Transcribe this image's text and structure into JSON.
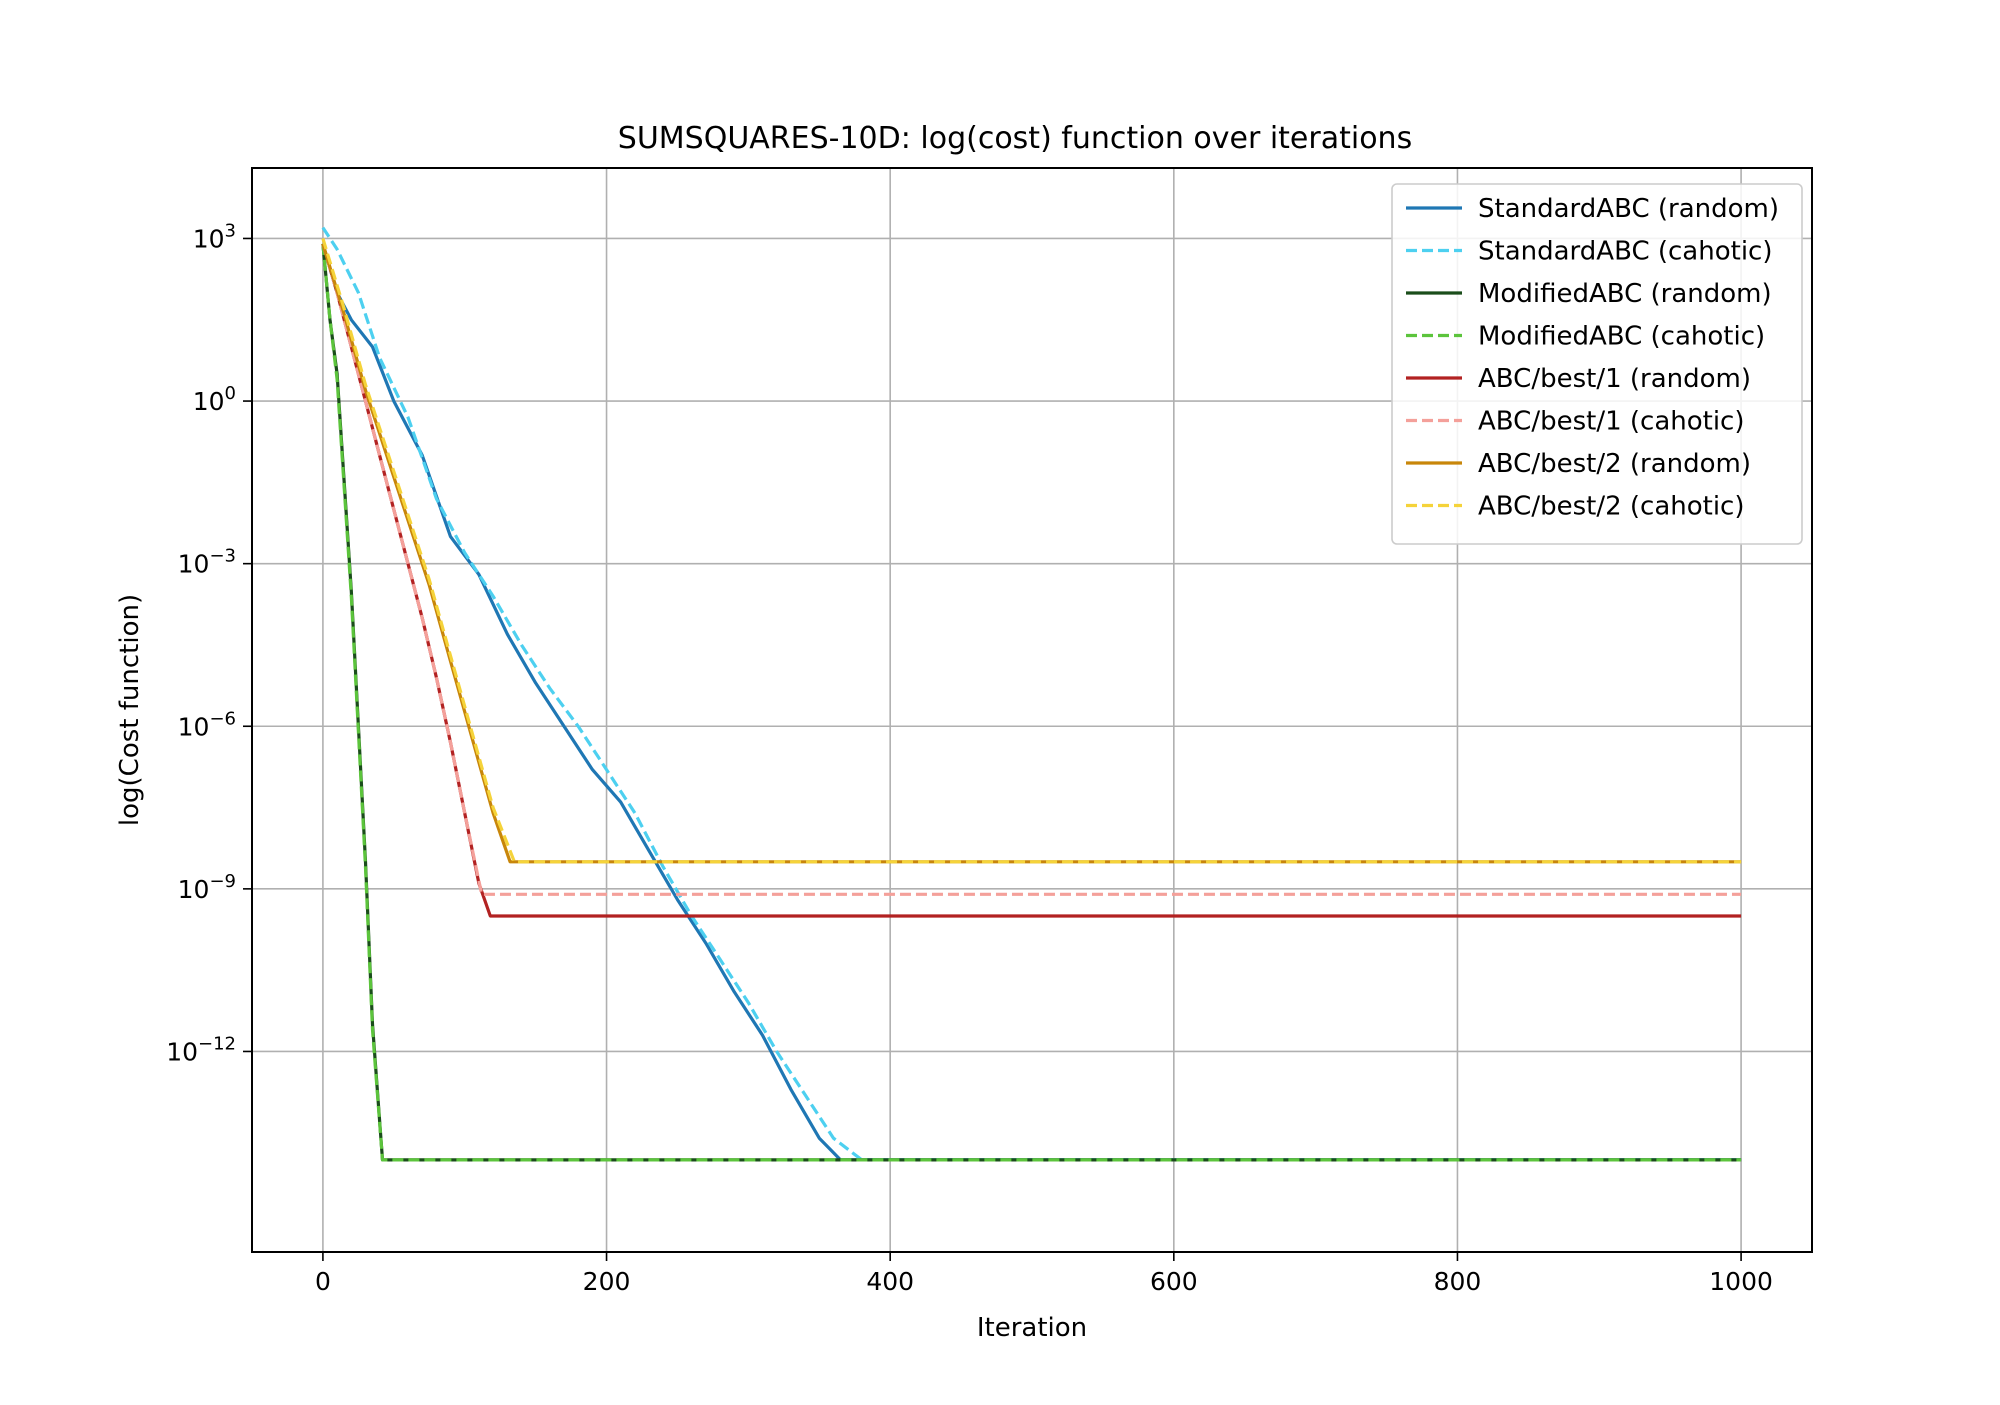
{
  "chart_data": {
    "type": "line",
    "title": "SUMSQUARES-10D: log(cost) function over iterations",
    "xlabel": "Iteration",
    "ylabel": "log(Cost function)",
    "xlim": [
      -50,
      1050
    ],
    "x_ticks": [
      0,
      200,
      400,
      600,
      800,
      1000
    ],
    "x_tick_labels": [
      "0",
      "200",
      "400",
      "600",
      "800",
      "1000"
    ],
    "y_scale": "log",
    "ylim_log10": [
      -15.7,
      4.3
    ],
    "y_ticks_log10": [
      3,
      0,
      -3,
      -6,
      -9,
      -12
    ],
    "y_tick_labels": [
      {
        "base": "10",
        "exp": "3"
      },
      {
        "base": "10",
        "exp": "0"
      },
      {
        "base": "10",
        "exp": "−3"
      },
      {
        "base": "10",
        "exp": "−6"
      },
      {
        "base": "10",
        "exp": "−9"
      },
      {
        "base": "10",
        "exp": "−12"
      }
    ],
    "grid": true,
    "legend_position": "top-right",
    "series": [
      {
        "name": "StandardABC (random)",
        "color": "#1f77b4",
        "dash": "solid",
        "x": [
          0,
          10,
          20,
          35,
          50,
          70,
          90,
          110,
          130,
          150,
          170,
          190,
          210,
          230,
          250,
          270,
          290,
          310,
          330,
          350,
          365,
          1000
        ],
        "log10_y": [
          2.9,
          2.0,
          1.5,
          1.0,
          0.0,
          -1.0,
          -2.5,
          -3.2,
          -4.3,
          -5.2,
          -6.0,
          -6.8,
          -7.4,
          -8.3,
          -9.2,
          -10.0,
          -10.9,
          -11.7,
          -12.7,
          -13.6,
          -14.0,
          -14.0
        ]
      },
      {
        "name": "StandardABC (cahotic)",
        "color": "#4dd0f0",
        "dash": "dashed",
        "x": [
          0,
          10,
          25,
          40,
          60,
          80,
          100,
          120,
          140,
          160,
          180,
          200,
          220,
          240,
          260,
          280,
          300,
          320,
          340,
          360,
          380,
          1000
        ],
        "log10_y": [
          3.2,
          2.8,
          2.0,
          0.8,
          -0.3,
          -1.8,
          -2.8,
          -3.6,
          -4.5,
          -5.3,
          -6.0,
          -6.8,
          -7.6,
          -8.6,
          -9.5,
          -10.3,
          -11.1,
          -12.0,
          -12.8,
          -13.6,
          -14.0,
          -14.0
        ]
      },
      {
        "name": "ModifiedABC (random)",
        "color": "#1a4d1a",
        "dash": "solid",
        "x": [
          0,
          5,
          10,
          15,
          20,
          25,
          30,
          35,
          42,
          1000
        ],
        "log10_y": [
          2.9,
          1.5,
          0.5,
          -1.5,
          -3.5,
          -6.0,
          -8.5,
          -11.5,
          -14.0,
          -14.0
        ]
      },
      {
        "name": "ModifiedABC (cahotic)",
        "color": "#5cc43c",
        "dash": "dashed",
        "x": [
          0,
          5,
          10,
          15,
          20,
          25,
          30,
          35,
          42,
          1000
        ],
        "log10_y": [
          2.9,
          1.5,
          0.4,
          -1.6,
          -3.6,
          -6.1,
          -8.6,
          -11.6,
          -14.0,
          -14.0
        ]
      },
      {
        "name": "ABC/best/1 (random)",
        "color": "#b22222",
        "dash": "solid",
        "x": [
          0,
          10,
          20,
          30,
          40,
          50,
          60,
          70,
          80,
          90,
          100,
          110,
          118,
          1000
        ],
        "log10_y": [
          2.9,
          2.0,
          1.0,
          0.0,
          -1.0,
          -2.0,
          -3.0,
          -4.0,
          -5.1,
          -6.3,
          -7.6,
          -8.9,
          -9.5,
          -9.5
        ]
      },
      {
        "name": "ABC/best/1 (cahotic)",
        "color": "#f4a09a",
        "dash": "dashed",
        "x": [
          0,
          10,
          20,
          30,
          40,
          50,
          60,
          70,
          80,
          90,
          100,
          112,
          1000
        ],
        "log10_y": [
          2.9,
          2.0,
          1.0,
          0.0,
          -1.0,
          -2.0,
          -3.0,
          -4.0,
          -5.1,
          -6.3,
          -7.6,
          -9.1,
          -9.1
        ]
      },
      {
        "name": "ABC/best/2 (random)",
        "color": "#c8860a",
        "dash": "solid",
        "x": [
          0,
          15,
          30,
          45,
          60,
          75,
          90,
          105,
          120,
          132,
          1000
        ],
        "log10_y": [
          2.9,
          1.6,
          0.2,
          -1.0,
          -2.2,
          -3.4,
          -4.8,
          -6.2,
          -7.6,
          -8.5,
          -8.5
        ]
      },
      {
        "name": "ABC/best/2 (cahotic)",
        "color": "#f5d33a",
        "dash": "dashed",
        "x": [
          0,
          15,
          30,
          45,
          60,
          75,
          90,
          105,
          120,
          135,
          1000
        ],
        "log10_y": [
          3.0,
          1.7,
          0.3,
          -0.9,
          -2.1,
          -3.3,
          -4.7,
          -6.1,
          -7.5,
          -8.5,
          -8.5
        ]
      }
    ]
  }
}
